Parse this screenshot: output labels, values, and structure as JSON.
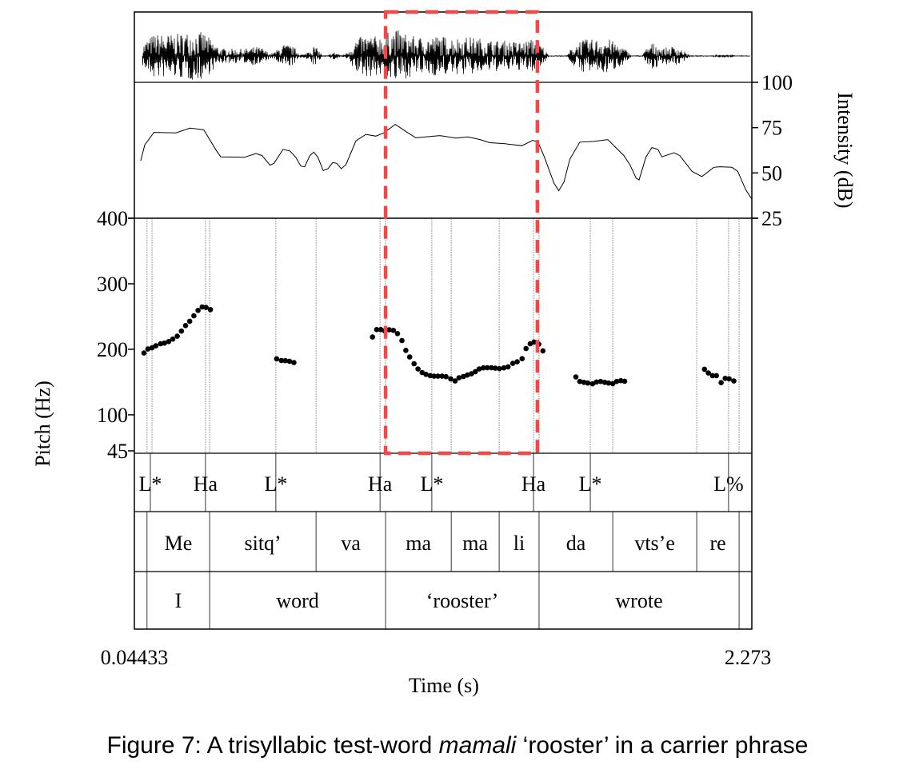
{
  "chart_data": {
    "type": "line",
    "caption": {
      "prefix": "Figure 7: A trisyllabic test-word ",
      "italic": "mamali",
      "suffix": " ‘rooster’ in a carrier phrase"
    },
    "xlabel": "Time (s)",
    "xlim": [
      0.04433,
      2.273
    ],
    "x_tick_labels": [
      "0.04433",
      "2.273"
    ],
    "pitch": {
      "ylabel": "Pitch (Hz)",
      "ylim": [
        45,
        400
      ],
      "ticks": [
        400,
        300,
        200,
        100,
        45
      ],
      "tick_labels": [
        "400",
        "300",
        "200",
        "100",
        "45"
      ],
      "points": [
        [
          0.079,
          194.3
        ],
        [
          0.093,
          200.4
        ],
        [
          0.108,
          202.4
        ],
        [
          0.122,
          205.3
        ],
        [
          0.139,
          208.5
        ],
        [
          0.153,
          209.4
        ],
        [
          0.168,
          211.8
        ],
        [
          0.183,
          215.5
        ],
        [
          0.199,
          219.9
        ],
        [
          0.214,
          227.7
        ],
        [
          0.229,
          236.2
        ],
        [
          0.244,
          242.7
        ],
        [
          0.259,
          251.2
        ],
        [
          0.274,
          259.4
        ],
        [
          0.289,
          264.6
        ],
        [
          0.303,
          263.8
        ],
        [
          0.319,
          260.6
        ],
        [
          0.558,
          185.4
        ],
        [
          0.575,
          182.9
        ],
        [
          0.589,
          182.6
        ],
        [
          0.604,
          181.7
        ],
        [
          0.62,
          179.7
        ],
        [
          0.904,
          218.7
        ],
        [
          0.919,
          230.1
        ],
        [
          0.934,
          230.1
        ],
        [
          0.948,
          228.1
        ],
        [
          0.964,
          229.7
        ],
        [
          0.979,
          228.9
        ],
        [
          0.994,
          224.0
        ],
        [
          1.01,
          213.4
        ],
        [
          1.024,
          198.4
        ],
        [
          1.038,
          188.2
        ],
        [
          1.054,
          178.0
        ],
        [
          1.068,
          169.9
        ],
        [
          1.083,
          164.6
        ],
        [
          1.097,
          161.8
        ],
        [
          1.112,
          159.8
        ],
        [
          1.126,
          158.9
        ],
        [
          1.14,
          158.9
        ],
        [
          1.155,
          158.9
        ],
        [
          1.169,
          158.2
        ],
        [
          1.186,
          154.9
        ],
        [
          1.202,
          151.6
        ],
        [
          1.216,
          156.5
        ],
        [
          1.232,
          158.5
        ],
        [
          1.246,
          160.6
        ],
        [
          1.261,
          162.6
        ],
        [
          1.275,
          165.9
        ],
        [
          1.289,
          169.9
        ],
        [
          1.304,
          171.6
        ],
        [
          1.318,
          171.9
        ],
        [
          1.333,
          171.9
        ],
        [
          1.347,
          171.1
        ],
        [
          1.362,
          170.4
        ],
        [
          1.378,
          171.6
        ],
        [
          1.393,
          173.2
        ],
        [
          1.41,
          178.4
        ],
        [
          1.426,
          180.9
        ],
        [
          1.444,
          185.7
        ],
        [
          1.458,
          201.2
        ],
        [
          1.473,
          208.5
        ],
        [
          1.487,
          211.0
        ],
        [
          1.504,
          207.7
        ],
        [
          1.519,
          197.6
        ],
        [
          1.638,
          157.7
        ],
        [
          1.652,
          150.9
        ],
        [
          1.667,
          149.6
        ],
        [
          1.681,
          148.4
        ],
        [
          1.698,
          147.2
        ],
        [
          1.712,
          150.0
        ],
        [
          1.727,
          150.9
        ],
        [
          1.742,
          149.6
        ],
        [
          1.756,
          148.4
        ],
        [
          1.771,
          147.6
        ],
        [
          1.785,
          150.9
        ],
        [
          1.8,
          152.1
        ],
        [
          1.814,
          151.2
        ],
        [
          2.102,
          169.5
        ],
        [
          2.116,
          163.8
        ],
        [
          2.131,
          159.8
        ],
        [
          2.145,
          159.8
        ],
        [
          2.162,
          149.1
        ],
        [
          2.177,
          155.7
        ],
        [
          2.191,
          154.9
        ],
        [
          2.208,
          151.6
        ]
      ]
    },
    "intensity": {
      "ylabel": "Intensity (dB)",
      "ylim": [
        25,
        100
      ],
      "ticks": [
        100,
        75,
        50,
        25
      ],
      "tick_labels": [
        "100",
        "75",
        "50",
        "25"
      ],
      "points": [
        [
          0.067,
          56.7
        ],
        [
          0.082,
          65.5
        ],
        [
          0.115,
          72.4
        ],
        [
          0.194,
          72.1
        ],
        [
          0.245,
          74.7
        ],
        [
          0.295,
          73.8
        ],
        [
          0.339,
          62.6
        ],
        [
          0.356,
          58.9
        ],
        [
          0.44,
          58.6
        ],
        [
          0.483,
          60.7
        ],
        [
          0.505,
          59.6
        ],
        [
          0.534,
          54.3
        ],
        [
          0.548,
          55.3
        ],
        [
          0.581,
          63.0
        ],
        [
          0.606,
          62.1
        ],
        [
          0.627,
          58.6
        ],
        [
          0.645,
          53.8
        ],
        [
          0.659,
          53.4
        ],
        [
          0.678,
          59.6
        ],
        [
          0.692,
          61.5
        ],
        [
          0.707,
          58.6
        ],
        [
          0.726,
          51.3
        ],
        [
          0.743,
          52.3
        ],
        [
          0.76,
          55.7
        ],
        [
          0.775,
          55.3
        ],
        [
          0.791,
          52.3
        ],
        [
          0.808,
          54.5
        ],
        [
          0.844,
          67.7
        ],
        [
          0.88,
          71.3
        ],
        [
          0.916,
          70.3
        ],
        [
          0.945,
          72.1
        ],
        [
          0.986,
          76.8
        ],
        [
          1.032,
          72.1
        ],
        [
          1.06,
          69.4
        ],
        [
          1.147,
          70.6
        ],
        [
          1.205,
          69.2
        ],
        [
          1.248,
          69.9
        ],
        [
          1.292,
          68.4
        ],
        [
          1.327,
          66.7
        ],
        [
          1.378,
          66.2
        ],
        [
          1.443,
          65.0
        ],
        [
          1.482,
          68.0
        ],
        [
          1.501,
          67.0
        ],
        [
          1.522,
          59.6
        ],
        [
          1.559,
          44.3
        ],
        [
          1.576,
          40.2
        ],
        [
          1.595,
          45.0
        ],
        [
          1.616,
          57.5
        ],
        [
          1.652,
          67.0
        ],
        [
          1.703,
          67.4
        ],
        [
          1.753,
          68.4
        ],
        [
          1.811,
          59.6
        ],
        [
          1.833,
          54.5
        ],
        [
          1.855,
          47.2
        ],
        [
          1.866,
          46.1
        ],
        [
          1.891,
          58.9
        ],
        [
          1.912,
          64.0
        ],
        [
          1.934,
          63.0
        ],
        [
          1.948,
          58.9
        ],
        [
          1.992,
          61.1
        ],
        [
          2.013,
          59.6
        ],
        [
          2.057,
          50.9
        ],
        [
          2.093,
          48.0
        ],
        [
          2.136,
          53.1
        ],
        [
          2.158,
          53.4
        ],
        [
          2.201,
          53.1
        ],
        [
          2.222,
          50.9
        ],
        [
          2.251,
          40.7
        ],
        [
          2.273,
          35.5
        ]
      ]
    },
    "tones": [
      {
        "label": "L*",
        "time": 0.102
      },
      {
        "label": "Ha",
        "time": 0.301
      },
      {
        "label": "L*",
        "time": 0.555
      },
      {
        "label": "Ha",
        "time": 0.931
      },
      {
        "label": "L*",
        "time": 1.118
      },
      {
        "label": "Ha",
        "time": 1.485
      },
      {
        "label": "L*",
        "time": 1.69
      },
      {
        "label": "L%",
        "time": 2.189
      }
    ],
    "guide_lines": [
      0.09,
      0.108,
      0.301,
      0.316,
      0.555,
      0.7,
      0.931,
      0.951,
      1.118,
      1.188,
      1.361,
      1.485,
      1.505,
      1.69,
      1.771,
      2.074,
      2.189,
      2.227
    ],
    "syllables": [
      {
        "label": "",
        "start": 0.04433,
        "end": 0.09
      },
      {
        "label": "Me",
        "start": 0.09,
        "end": 0.316
      },
      {
        "label": "sitq’",
        "start": 0.316,
        "end": 0.7
      },
      {
        "label": "va",
        "start": 0.7,
        "end": 0.951
      },
      {
        "label": "ma",
        "start": 0.951,
        "end": 1.188
      },
      {
        "label": "ma",
        "start": 1.188,
        "end": 1.361
      },
      {
        "label": "li",
        "start": 1.361,
        "end": 1.505
      },
      {
        "label": "da",
        "start": 1.505,
        "end": 1.771
      },
      {
        "label": "vts’e",
        "start": 1.771,
        "end": 2.074
      },
      {
        "label": "re",
        "start": 2.074,
        "end": 2.227
      },
      {
        "label": "",
        "start": 2.227,
        "end": 2.273
      }
    ],
    "words": [
      {
        "label": "",
        "start": 0.04433,
        "end": 0.09
      },
      {
        "label": "I",
        "start": 0.09,
        "end": 0.316
      },
      {
        "label": "word",
        "start": 0.316,
        "end": 0.951
      },
      {
        "label": "‘rooster’",
        "start": 0.951,
        "end": 1.505
      },
      {
        "label": "wrote",
        "start": 1.505,
        "end": 2.227
      },
      {
        "label": "",
        "start": 2.227,
        "end": 2.273
      }
    ],
    "highlight": {
      "start": 0.951,
      "end": 1.499,
      "color": "#f44848"
    }
  }
}
